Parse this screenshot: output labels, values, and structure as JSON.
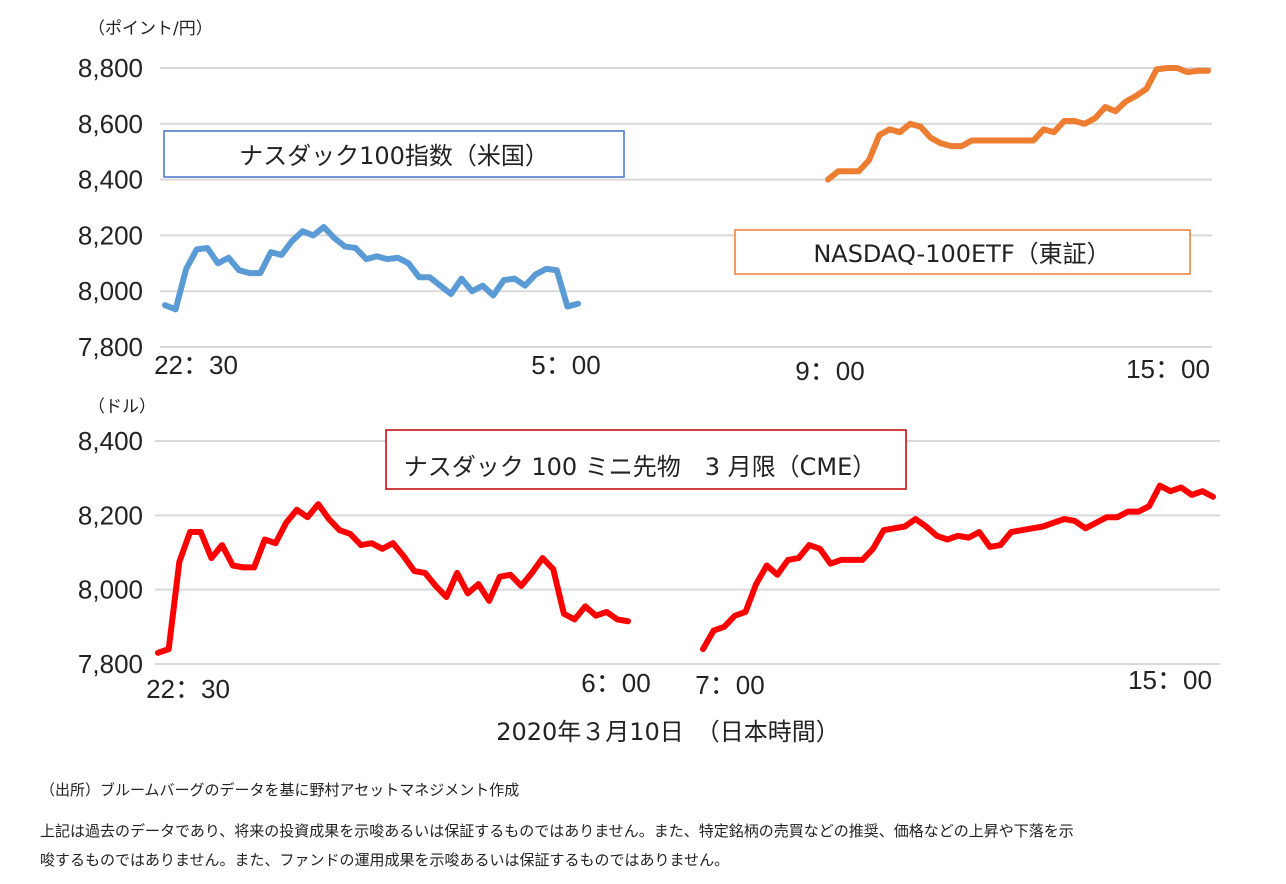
{
  "chart_data": [
    {
      "type": "line",
      "unit_label": "（ポイント/円）",
      "ylim": [
        7800,
        8800
      ],
      "yticks": [
        "8,800",
        "8,600",
        "8,400",
        "8,200",
        "8,000",
        "7,800"
      ],
      "grid": true,
      "series": [
        {
          "name": "ナスダック100指数（米国）",
          "color": "#5B9BD5",
          "x_start": "22：30",
          "x_end": "5：00",
          "values": [
            7950,
            7935,
            8080,
            8150,
            8155,
            8100,
            8120,
            8075,
            8065,
            8065,
            8140,
            8130,
            8180,
            8215,
            8200,
            8230,
            8190,
            8160,
            8155,
            8115,
            8125,
            8115,
            8120,
            8100,
            8050,
            8050,
            8020,
            7990,
            8045,
            8000,
            8020,
            7985,
            8040,
            8045,
            8020,
            8060,
            8080,
            8075,
            7945,
            7955
          ]
        },
        {
          "name": "NASDAQ-100ETF（東証）",
          "color": "#ED7D31",
          "x_start": "9：00",
          "x_end": "15：00",
          "values": [
            8400,
            8430,
            8430,
            8430,
            8470,
            8560,
            8580,
            8570,
            8600,
            8590,
            8550,
            8530,
            8520,
            8520,
            8540,
            8540,
            8540,
            8540,
            8540,
            8540,
            8540,
            8580,
            8570,
            8610,
            8610,
            8600,
            8620,
            8660,
            8645,
            8680,
            8700,
            8725,
            8795,
            8800,
            8800,
            8785,
            8790,
            8790
          ]
        }
      ],
      "xticks": [
        "22：30",
        "5：00",
        "9：00",
        "15：00"
      ]
    },
    {
      "type": "line",
      "unit_label": "（ドル）",
      "ylim": [
        7800,
        8400
      ],
      "yticks": [
        "8,400",
        "8,200",
        "8,000",
        "7,800"
      ],
      "grid": true,
      "series": [
        {
          "name": "ナスダック 100 ミニ先物　3 月限（CME）",
          "color": "#FF0000",
          "segments": [
            {
              "x_start": "22：30",
              "x_end": "6：00",
              "values": [
                7830,
                7840,
                8075,
                8155,
                8155,
                8085,
                8120,
                8065,
                8060,
                8060,
                8135,
                8125,
                8180,
                8215,
                8195,
                8230,
                8190,
                8160,
                8150,
                8120,
                8125,
                8110,
                8125,
                8090,
                8050,
                8045,
                8010,
                7980,
                8045,
                7990,
                8015,
                7970,
                8035,
                8040,
                8010,
                8045,
                8085,
                8055,
                7935,
                7920,
                7955,
                7930,
                7940,
                7920,
                7915
              ]
            },
            {
              "x_start": "7：00",
              "x_end": "15：00",
              "values": [
                7840,
                7890,
                7900,
                7930,
                7940,
                8015,
                8065,
                8040,
                8080,
                8085,
                8120,
                8110,
                8070,
                8080,
                8080,
                8080,
                8110,
                8160,
                8165,
                8170,
                8190,
                8170,
                8145,
                8135,
                8145,
                8140,
                8155,
                8115,
                8120,
                8155,
                8160,
                8165,
                8170,
                8180,
                8190,
                8185,
                8165,
                8180,
                8195,
                8195,
                8210,
                8210,
                8225,
                8280,
                8265,
                8275,
                8255,
                8265,
                8250
              ]
            }
          ]
        }
      ],
      "xticks": [
        "22：30",
        "6：00",
        "7：00",
        "15：00"
      ]
    }
  ],
  "xlabel": "2020年３月10日　（日本時間）",
  "notes": [
    "（出所）ブルームバーグのデータを基に野村アセットマネジメント作成",
    "上記は過去のデータであり、将来の投資成果を示唆あるいは保証するものではありません。また、特定銘柄の売買などの推奨、価格などの上昇や下落を示",
    "唆するものではありません。また、ファンドの運用成果を示唆あるいは保証するものではありません。"
  ]
}
